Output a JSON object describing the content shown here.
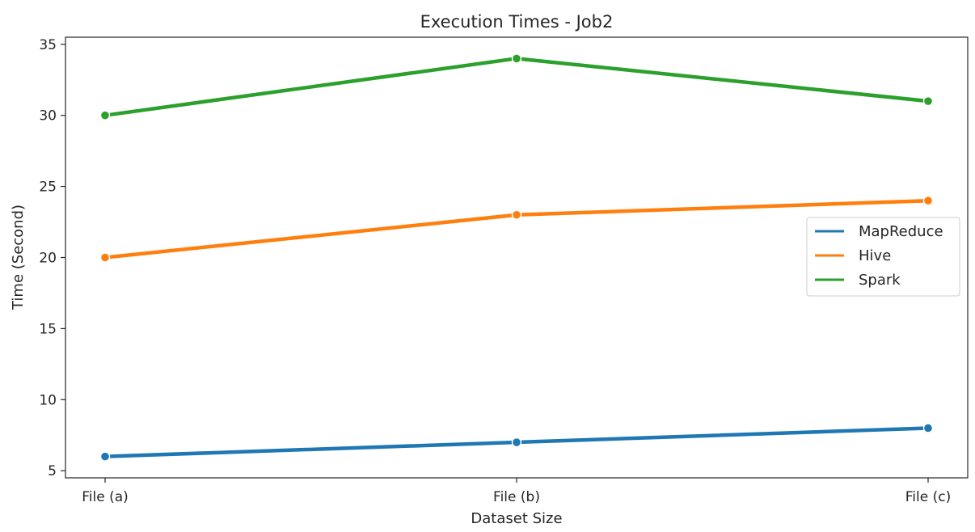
{
  "chart_data": {
    "type": "line",
    "title": "Execution Times - Job2",
    "xlabel": "Dataset Size",
    "ylabel": "Time (Second)",
    "categories": [
      "File (a)",
      "File (b)",
      "File (c)"
    ],
    "ylim": [
      4.5,
      35.5
    ],
    "yticks": [
      5,
      10,
      15,
      20,
      25,
      30,
      35
    ],
    "grid": false,
    "legend_position": "center-right",
    "markers": true,
    "series": [
      {
        "name": "MapReduce",
        "values": [
          6,
          7,
          8
        ],
        "color": "#1f77b4"
      },
      {
        "name": "Hive",
        "values": [
          20,
          23,
          24
        ],
        "color": "#ff7f0e"
      },
      {
        "name": "Spark",
        "values": [
          30,
          34,
          31
        ],
        "color": "#2ca02c"
      }
    ]
  }
}
